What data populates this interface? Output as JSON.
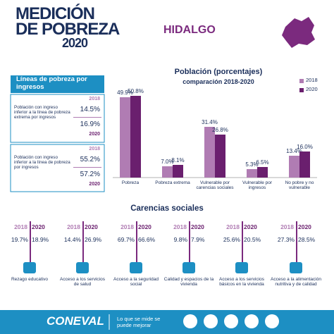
{
  "header": {
    "title": [
      "MEDICIÓN",
      "DE POBREZA",
      "2020"
    ],
    "state": "HIDALGO"
  },
  "income_lines": {
    "title": "Líneas de pobreza por ingresos",
    "rows": [
      {
        "label": "Población con ingreso inferior a la línea de pobreza extrema por ingresos",
        "year_a": "2018",
        "value_a": "14.5%",
        "value_b": "16.9%",
        "year_b": "2020"
      },
      {
        "label": "Población con ingreso inferior a la línea de pobreza por ingresos",
        "year_a": "2018",
        "value_a": "55.2%",
        "value_b": "57.2%",
        "year_b": "2020"
      }
    ]
  },
  "chart_data": {
    "type": "bar",
    "title": "Población (porcentajes)",
    "subtitle": "comparación 2018-2020",
    "categories": [
      "Pobreza",
      "Pobreza extrema",
      "Vulnerable por carencias sociales",
      "Vulnerable por ingresos",
      "No pobre y no vulnerable"
    ],
    "series": [
      {
        "name": "2018",
        "color": "#b07cb3",
        "values": [
          49.9,
          7.0,
          31.4,
          5.3,
          13.4
        ],
        "value_labels": [
          "49.9%",
          "7.0%",
          "31.4%",
          "5.3%",
          "13.4%"
        ]
      },
      {
        "name": "2020",
        "color": "#6a1f6e",
        "values": [
          50.8,
          8.1,
          26.8,
          6.5,
          16.0
        ],
        "value_labels": [
          "50.8%",
          "8.1%",
          "26.8%",
          "6.5%",
          "16.0%"
        ]
      }
    ],
    "legend": "top-right"
  },
  "deprivations": {
    "title": "Carencias sociales",
    "years": [
      "2018",
      "2020"
    ],
    "items": [
      {
        "label": "Rezago educativo",
        "values": [
          "19.7%",
          "18.9%"
        ]
      },
      {
        "label": "Acceso a los servicios de salud",
        "values": [
          "14.4%",
          "26.9%"
        ]
      },
      {
        "label": "Acceso a la seguridad social",
        "values": [
          "69.7%",
          "66.6%"
        ]
      },
      {
        "label": "Calidad y espacios de la vivienda",
        "values": [
          "9.8%",
          "7.9%"
        ]
      },
      {
        "label": "Acceso a los servicios básicos en la vivienda",
        "values": [
          "25.6%",
          "20.5%"
        ]
      },
      {
        "label": "Acceso a la alimentación nutritiva y de calidad",
        "values": [
          "27.3%",
          "28.5%"
        ]
      }
    ]
  },
  "footer": {
    "brand": "CONEVAL",
    "slogan": "Lo que se mide se puede mejorar"
  }
}
